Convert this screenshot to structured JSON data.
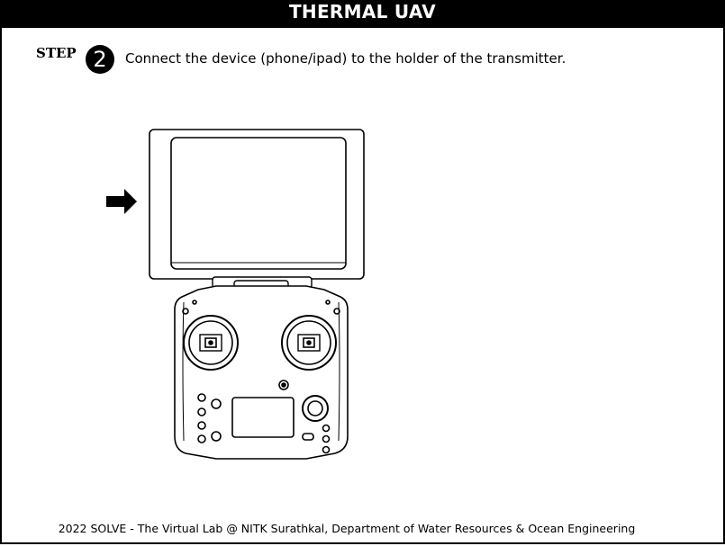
{
  "header": {
    "title": "THERMAL UAV"
  },
  "step": {
    "label": "STEP",
    "number": "2",
    "instruction": "Connect the device (phone/ipad) to the holder of the transmitter."
  },
  "illustration": {
    "arrow_icon": "right-arrow-icon",
    "device_icon": "tablet-icon",
    "transmitter_icon": "remote-controller-icon"
  },
  "footer": {
    "text": "2022 SOLVE - The Virtual Lab @ NITK Surathkal, Department of Water Resources & Ocean Engineering"
  }
}
